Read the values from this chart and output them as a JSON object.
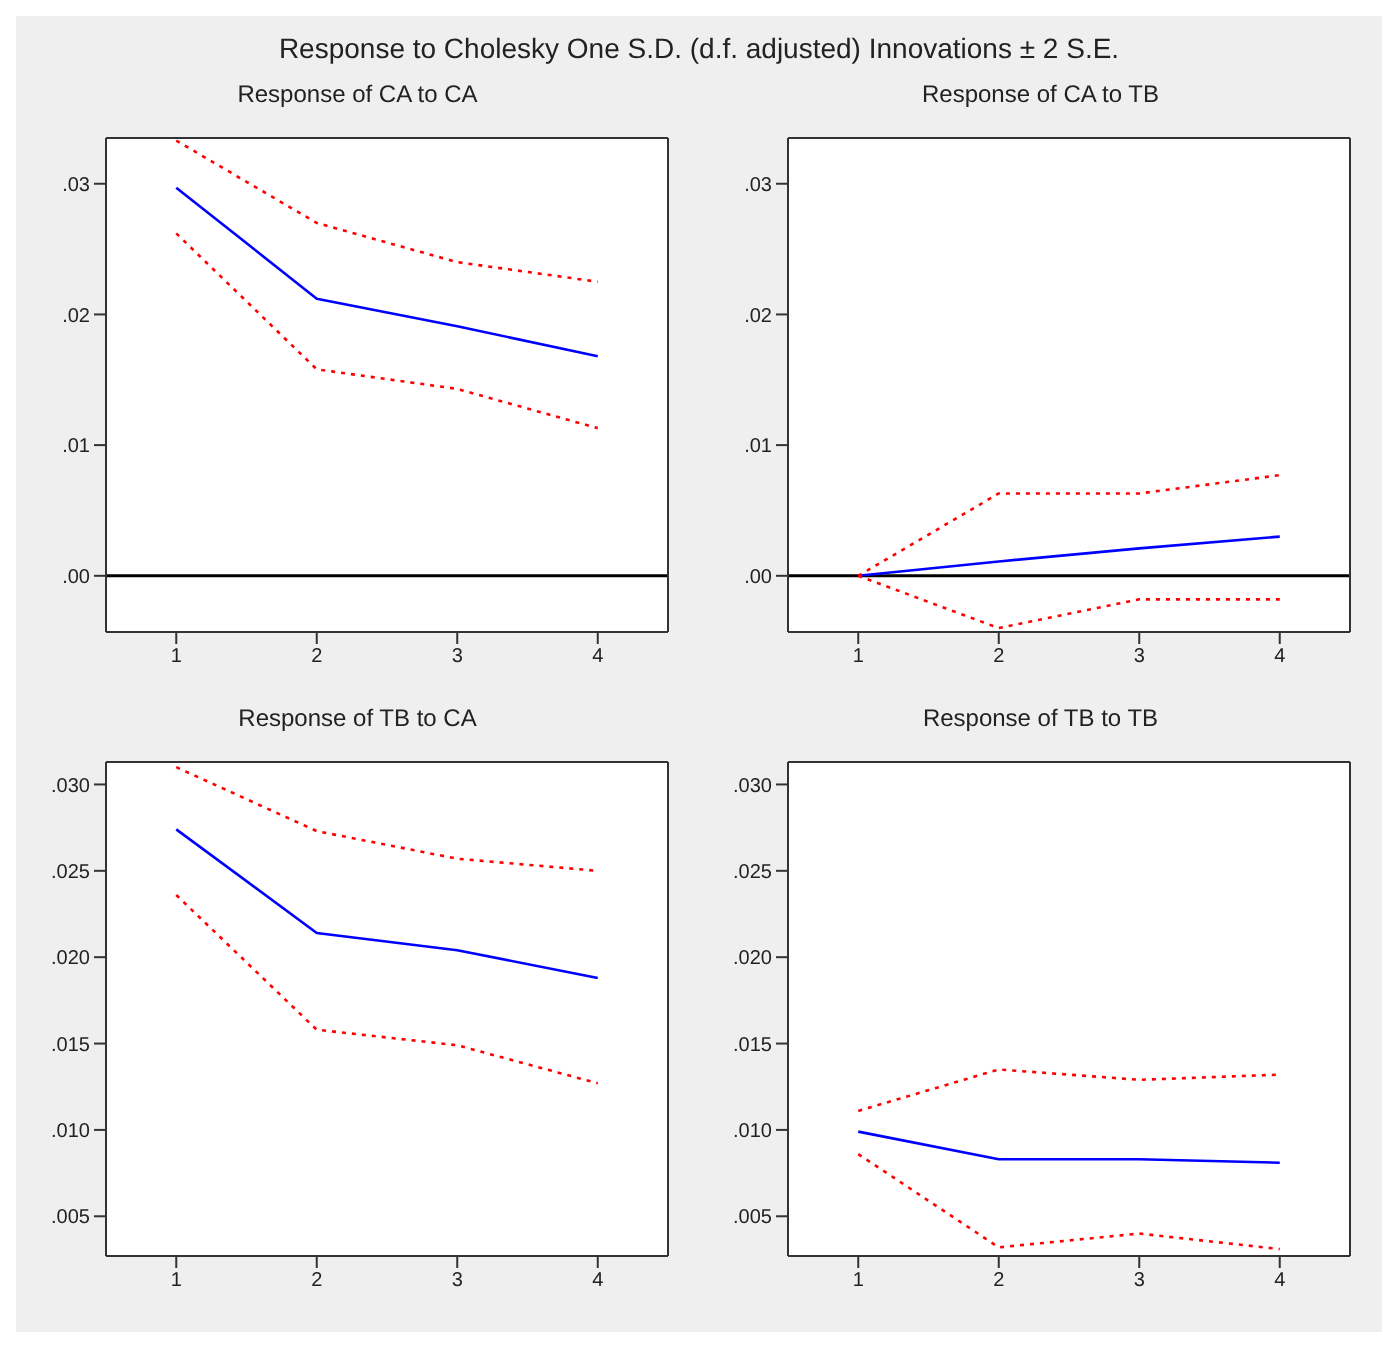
{
  "chart_data": [
    {
      "type": "line",
      "title": "Response of CA to CA",
      "annotations": [
        "Response to Cholesky One S.D. (d.f. adjusted) Innovations ± 2 S.E."
      ],
      "x": [
        1,
        2,
        3,
        4
      ],
      "xlim": [
        0.5,
        4.5
      ],
      "xticks": [
        1,
        2,
        3,
        4
      ],
      "ylim": [
        -0.0043,
        0.0335
      ],
      "yticks": [
        {
          "value": 0,
          "label": ".00"
        },
        {
          "value": 0.01,
          "label": ".01"
        },
        {
          "value": 0.02,
          "label": ".02"
        },
        {
          "value": 0.03,
          "label": ".03"
        }
      ],
      "ref_lines": [
        {
          "axis": "y",
          "value": 0,
          "color": "#000000"
        }
      ],
      "series": [
        {
          "color": "#0000ff",
          "line_style": "solid",
          "values": [
            0.0297,
            0.0212,
            0.0191,
            0.0168
          ]
        },
        {
          "color": "#ff0000",
          "line_style": "dotted",
          "values": [
            0.0333,
            0.027,
            0.024,
            0.0225
          ]
        },
        {
          "color": "#ff0000",
          "line_style": "dotted",
          "values": [
            0.0262,
            0.0158,
            0.0143,
            0.0113
          ]
        }
      ]
    },
    {
      "type": "line",
      "title": "Response of CA to TB",
      "x": [
        1,
        2,
        3,
        4
      ],
      "xlim": [
        0.5,
        4.5
      ],
      "xticks": [
        1,
        2,
        3,
        4
      ],
      "ylim": [
        -0.0043,
        0.0335
      ],
      "yticks": [
        {
          "value": 0,
          "label": ".00"
        },
        {
          "value": 0.01,
          "label": ".01"
        },
        {
          "value": 0.02,
          "label": ".02"
        },
        {
          "value": 0.03,
          "label": ".03"
        }
      ],
      "ref_lines": [
        {
          "axis": "y",
          "value": 0,
          "color": "#000000"
        }
      ],
      "series": [
        {
          "color": "#0000ff",
          "line_style": "solid",
          "values": [
            0,
            0.0011,
            0.0021,
            0.003
          ]
        },
        {
          "color": "#ff0000",
          "line_style": "dotted",
          "values": [
            0,
            0.0063,
            0.0063,
            0.0077
          ]
        },
        {
          "color": "#ff0000",
          "line_style": "dotted",
          "values": [
            0,
            -0.004,
            -0.0018,
            -0.0018
          ]
        }
      ]
    },
    {
      "type": "line",
      "title": "Response of TB to CA",
      "x": [
        1,
        2,
        3,
        4
      ],
      "xlim": [
        0.5,
        4.5
      ],
      "xticks": [
        1,
        2,
        3,
        4
      ],
      "ylim": [
        0.0027,
        0.0313
      ],
      "yticks": [
        {
          "value": 0.005,
          "label": ".005"
        },
        {
          "value": 0.01,
          "label": ".010"
        },
        {
          "value": 0.015,
          "label": ".015"
        },
        {
          "value": 0.02,
          "label": ".020"
        },
        {
          "value": 0.025,
          "label": ".025"
        },
        {
          "value": 0.03,
          "label": ".030"
        }
      ],
      "series": [
        {
          "color": "#0000ff",
          "line_style": "solid",
          "values": [
            0.0274,
            0.0214,
            0.0204,
            0.0188
          ]
        },
        {
          "color": "#ff0000",
          "line_style": "dotted",
          "values": [
            0.031,
            0.0273,
            0.0257,
            0.025
          ]
        },
        {
          "color": "#ff0000",
          "line_style": "dotted",
          "values": [
            0.0236,
            0.0158,
            0.0149,
            0.0127
          ]
        }
      ]
    },
    {
      "type": "line",
      "title": "Response of TB to TB",
      "x": [
        1,
        2,
        3,
        4
      ],
      "xlim": [
        0.5,
        4.5
      ],
      "xticks": [
        1,
        2,
        3,
        4
      ],
      "ylim": [
        0.0027,
        0.0313
      ],
      "yticks": [
        {
          "value": 0.005,
          "label": ".005"
        },
        {
          "value": 0.01,
          "label": ".010"
        },
        {
          "value": 0.015,
          "label": ".015"
        },
        {
          "value": 0.02,
          "label": ".020"
        },
        {
          "value": 0.025,
          "label": ".025"
        },
        {
          "value": 0.03,
          "label": ".030"
        }
      ],
      "series": [
        {
          "color": "#0000ff",
          "line_style": "solid",
          "values": [
            0.0099,
            0.0083,
            0.0083,
            0.0081
          ]
        },
        {
          "color": "#ff0000",
          "line_style": "dotted",
          "values": [
            0.0111,
            0.0135,
            0.0129,
            0.0132
          ]
        },
        {
          "color": "#ff0000",
          "line_style": "dotted",
          "values": [
            0.0086,
            0.0032,
            0.004,
            0.0031
          ]
        }
      ]
    }
  ]
}
